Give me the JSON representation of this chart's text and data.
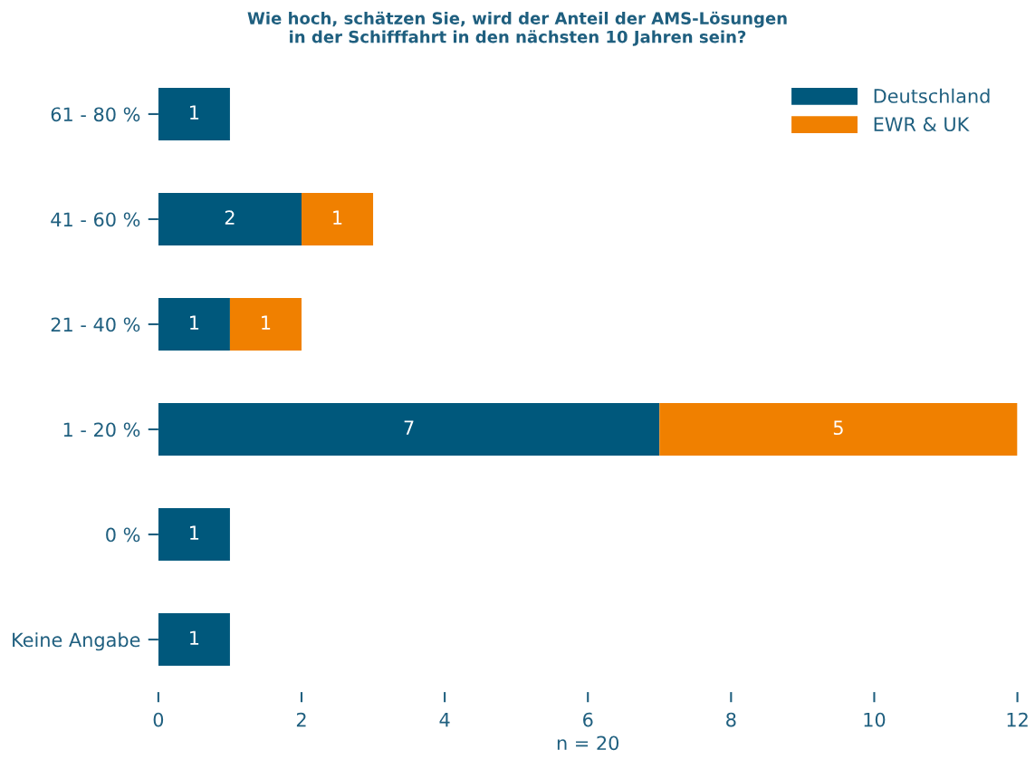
{
  "chart_data": {
    "type": "bar",
    "orientation": "horizontal",
    "stacked": true,
    "title": "Wie hoch, schätzen Sie, wird der Anteil der AMS-Lösungen\nin der Schifffahrt in den nächsten 10 Jahren sein?",
    "xlabel": "n = 20",
    "categories": [
      "61 - 80 %",
      "41 - 60 %",
      "21 - 40 %",
      "1 - 20 %",
      "0 %",
      "Keine Angabe"
    ],
    "series": [
      {
        "name": "Deutschland",
        "color": "#00587c",
        "values": [
          1,
          2,
          1,
          7,
          1,
          1
        ]
      },
      {
        "name": "EWR & UK",
        "color": "#f08000",
        "values": [
          null,
          1,
          1,
          5,
          null,
          null
        ]
      }
    ],
    "xlim": [
      0,
      12
    ],
    "xticks": [
      0,
      2,
      4,
      6,
      8,
      10,
      12
    ],
    "grid": false,
    "legend": "top right",
    "data_labels": true
  }
}
